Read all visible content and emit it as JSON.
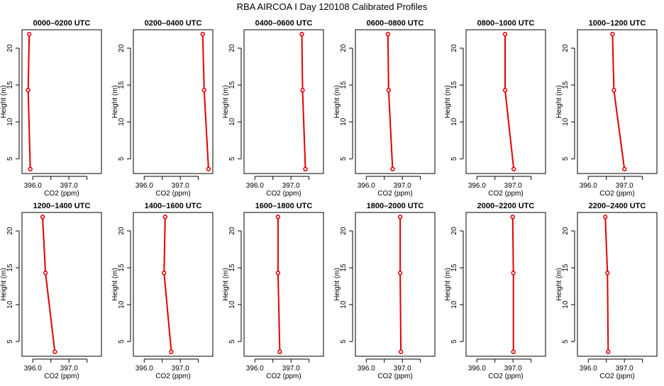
{
  "chart_data": {
    "type": "line",
    "title": "RBA AIRCOA I  Day 120108  Calibrated Profiles",
    "xlabel": "CO2 (ppm)",
    "ylabel": "Height (m)",
    "xlim": [
      395.7,
      397.9
    ],
    "ylim": [
      3,
      22.5
    ],
    "xticks": [
      396.0,
      396.5,
      397.0,
      397.5
    ],
    "xtick_labels": [
      "396.0",
      "",
      "397.0",
      ""
    ],
    "yticks": [
      5,
      10,
      15,
      20
    ],
    "ytick_labels": [
      "5",
      "10",
      "15",
      "20"
    ],
    "heights": [
      3.6,
      14.3,
      21.9
    ],
    "grid": false,
    "legend": "none",
    "colors": {
      "line": "#e00000",
      "point_fill": "#ffffff"
    },
    "panels": [
      {
        "title": "0000–0200 UTC",
        "co2": [
          395.93,
          395.87,
          395.9
        ]
      },
      {
        "title": "0200–0400 UTC",
        "co2": [
          397.78,
          397.66,
          397.62
        ]
      },
      {
        "title": "0400–0600 UTC",
        "co2": [
          397.4,
          397.32,
          397.3
        ]
      },
      {
        "title": "0600–0800 UTC",
        "co2": [
          396.73,
          396.62,
          396.6
        ]
      },
      {
        "title": "0800–1000 UTC",
        "co2": [
          397.02,
          396.78,
          396.78
        ]
      },
      {
        "title": "1000–1200 UTC",
        "co2": [
          397.0,
          396.71,
          396.67
        ]
      },
      {
        "title": "1200–1400 UTC",
        "co2": [
          396.61,
          396.35,
          396.27
        ]
      },
      {
        "title": "1400–1600 UTC",
        "co2": [
          396.75,
          396.55,
          396.58
        ]
      },
      {
        "title": "1600–1800 UTC",
        "co2": [
          396.69,
          396.64,
          396.64
        ]
      },
      {
        "title": "1800–2000 UTC",
        "co2": [
          396.96,
          396.94,
          396.94
        ]
      },
      {
        "title": "2000–2200 UTC",
        "co2": [
          397.01,
          397.01,
          396.99
        ]
      },
      {
        "title": "2200–2400 UTC",
        "co2": [
          396.55,
          396.53,
          396.47
        ]
      }
    ]
  }
}
